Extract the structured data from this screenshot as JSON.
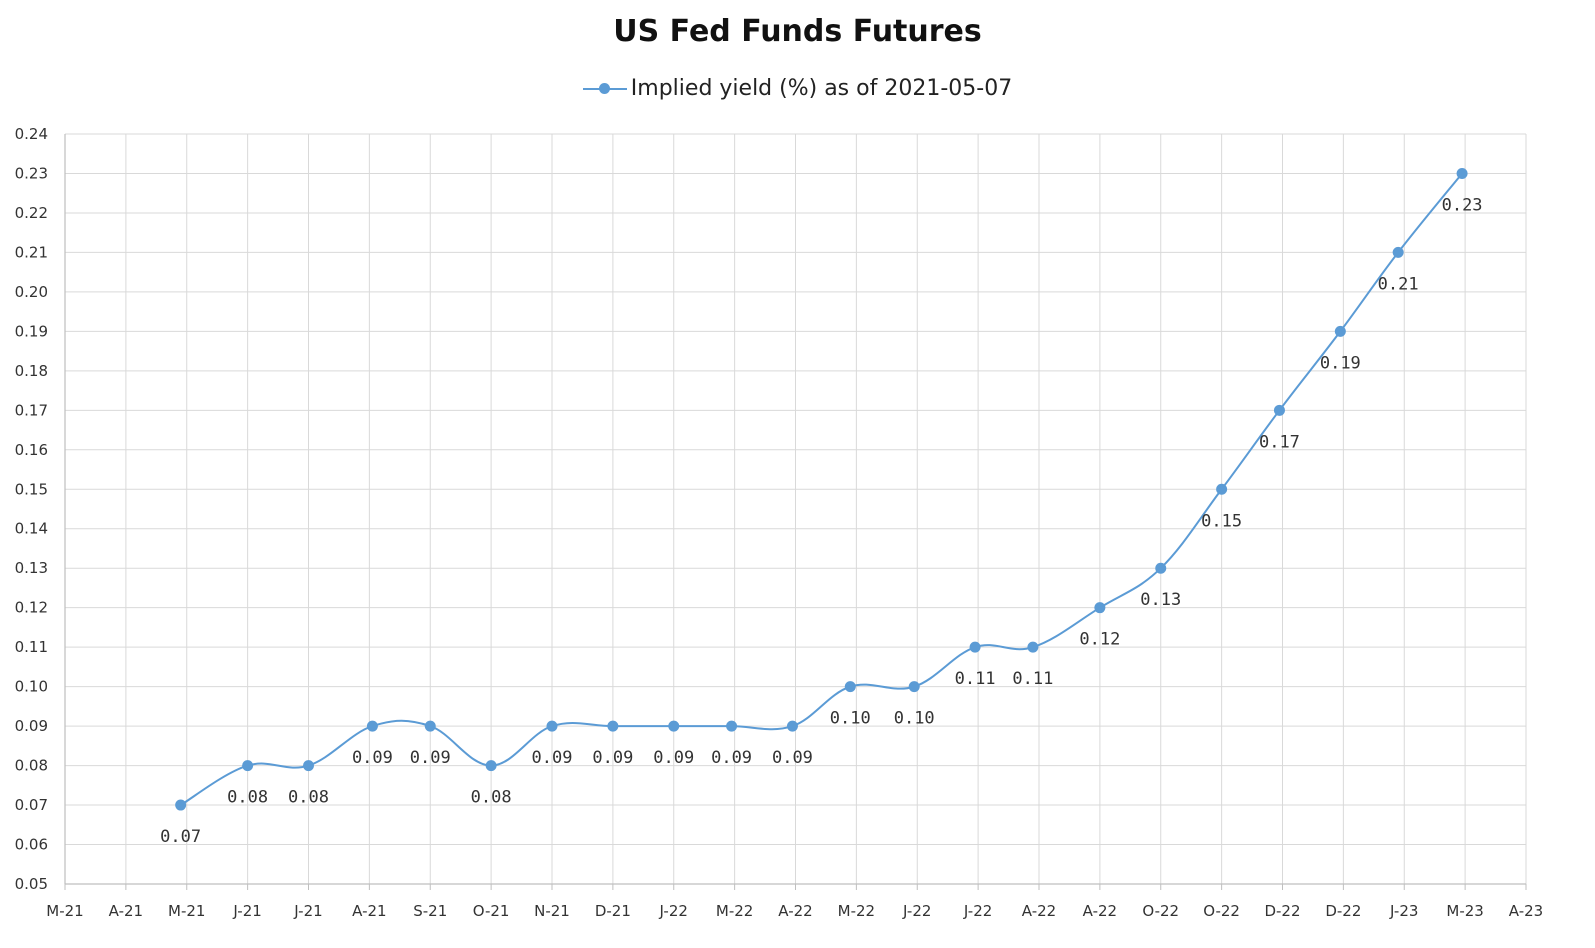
{
  "chart_data": {
    "type": "line",
    "title": "US Fed Funds Futures",
    "xlabel": "",
    "ylabel": "",
    "ylim": [
      0.05,
      0.24
    ],
    "y_ticks": [
      "0.05",
      "0.06",
      "0.07",
      "0.08",
      "0.09",
      "0.10",
      "0.11",
      "0.12",
      "0.13",
      "0.14",
      "0.15",
      "0.16",
      "0.17",
      "0.18",
      "0.19",
      "0.20",
      "0.21",
      "0.22",
      "0.23",
      "0.24"
    ],
    "x_ticks": [
      "M-21",
      "A-21",
      "M-21",
      "J-21",
      "J-21",
      "A-21",
      "S-21",
      "O-21",
      "N-21",
      "D-21",
      "J-22",
      "M-22",
      "A-22",
      "M-22",
      "J-22",
      "J-22",
      "A-22",
      "A-22",
      "O-22",
      "O-22",
      "D-22",
      "D-22",
      "J-23",
      "M-23",
      "A-23"
    ],
    "grid": true,
    "legend_position": "top",
    "series": [
      {
        "name": "Implied yield (%) as of 2021-05-07",
        "color": "#5b9bd5",
        "x_index": [
          1.9,
          3.0,
          4.0,
          5.05,
          6.0,
          7.0,
          8.0,
          9.0,
          10.0,
          10.95,
          11.95,
          12.9,
          13.95,
          14.95,
          15.9,
          17.0,
          18.0,
          19.0,
          19.95,
          20.95,
          21.9,
          22.95
        ],
        "values": [
          0.07,
          0.08,
          0.08,
          0.09,
          0.09,
          0.08,
          0.09,
          0.09,
          0.09,
          0.09,
          0.09,
          0.1,
          0.1,
          0.11,
          0.11,
          0.12,
          0.13,
          0.15,
          0.17,
          0.19,
          0.21,
          0.23
        ],
        "labels": [
          "0.07",
          "0.08",
          "0.08",
          "0.09",
          "0.09",
          "0.08",
          "0.09",
          "0.09",
          "0.09",
          "0.09",
          "0.09",
          "0.10",
          "0.10",
          "0.11",
          "0.11",
          "0.12",
          "0.13",
          "0.15",
          "0.17",
          "0.19",
          "0.21",
          "0.23"
        ]
      }
    ]
  }
}
